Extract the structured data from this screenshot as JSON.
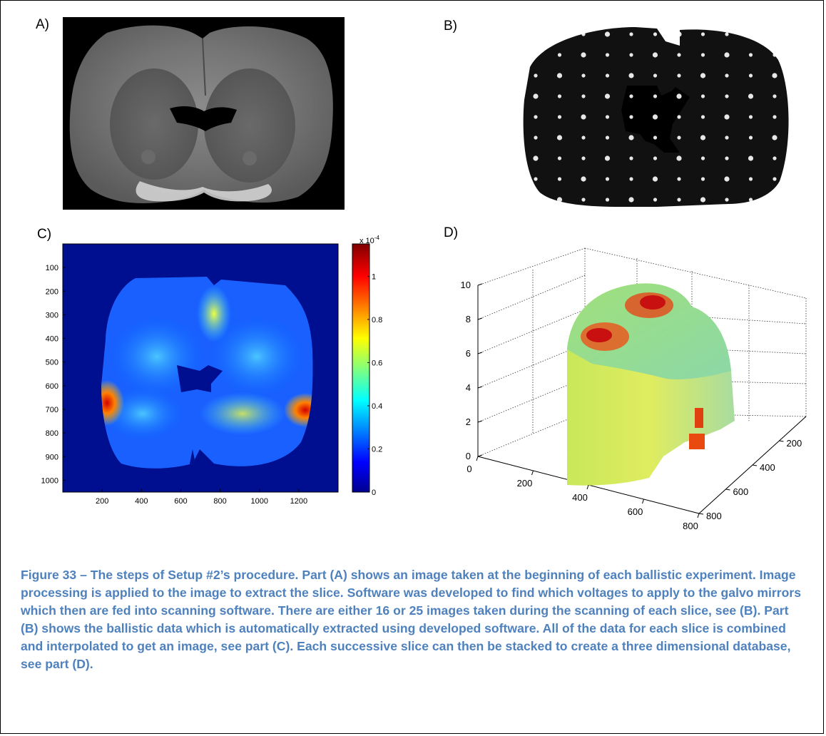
{
  "panels": {
    "a_label": "A)",
    "b_label": "B)",
    "c_label": "C)",
    "d_label": "D)"
  },
  "chart_data": [
    {
      "type": "heatmap",
      "panel": "C",
      "title": "",
      "xlabel": "",
      "ylabel": "",
      "x_ticks": [
        "200",
        "400",
        "600",
        "800",
        "1000",
        "1200"
      ],
      "y_ticks": [
        "100",
        "200",
        "300",
        "400",
        "500",
        "600",
        "700",
        "800",
        "900",
        "1000"
      ],
      "xlim": [
        0,
        1400
      ],
      "ylim": [
        1050,
        0
      ],
      "colorbar": {
        "multiplier": "x 10",
        "exponent": "-4",
        "ticks": [
          "0",
          "0.2",
          "0.4",
          "0.6",
          "0.8",
          "1"
        ],
        "range": [
          0,
          1.15
        ]
      },
      "colors": {
        "background": "#000f8f",
        "low": "#0a3cff",
        "high": "#c40000"
      }
    },
    {
      "type": "surface3d",
      "panel": "D",
      "title": "",
      "z_ticks": [
        "0",
        "2",
        "4",
        "6",
        "8",
        "10"
      ],
      "x_ticks": [
        "0",
        "200",
        "400",
        "600",
        "800"
      ],
      "y_ticks": [
        "200",
        "400",
        "600",
        "800"
      ],
      "zlim": [
        0,
        10
      ],
      "xlim": [
        0,
        800
      ],
      "ylim": [
        0,
        800
      ]
    }
  ],
  "caption": "Figure 33 – The steps of Setup #2’s procedure. Part (A) shows an image taken at the beginning of each ballistic experiment. Image processing is applied to the image to extract the slice. Software was developed to find which voltages to apply to the galvo mirrors which then are fed into scanning software. There are either 16 or 25 images taken during the scanning of each slice, see (B). Part (B) shows the ballistic data which is automatically extracted using developed software. All of the data for each slice is combined and interpolated to get an image, see part (C). Each successive slice can then be stacked to create a three dimensional database, see part (D)."
}
